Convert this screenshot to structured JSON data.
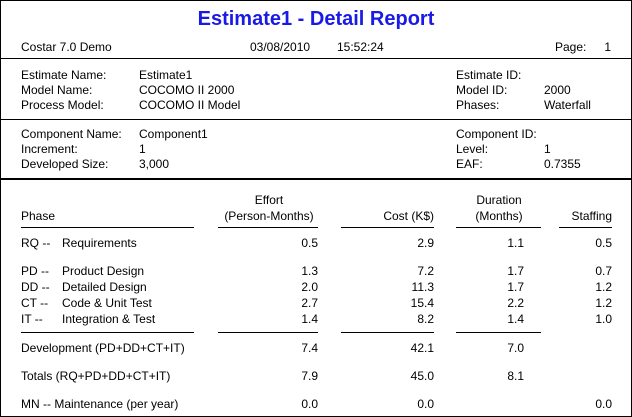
{
  "report": {
    "title": "Estimate1 - Detail Report",
    "app": "Costar 7.0 Demo",
    "date": "03/08/2010",
    "time": "15:52:24",
    "page_label": "Page:",
    "page_number": "1"
  },
  "estimate": {
    "name_label": "Estimate Name:",
    "name": "Estimate1",
    "model_label": "Model Name:",
    "model": "COCOMO II 2000",
    "process_label": "Process Model:",
    "process": "COCOMO II Model",
    "id_label": "Estimate ID:",
    "id": "",
    "model_id_label": "Model ID:",
    "model_id": "2000",
    "phases_label": "Phases:",
    "phases": "Waterfall"
  },
  "component": {
    "name_label": "Component Name:",
    "name": "Component1",
    "increment_label": "Increment:",
    "increment": "1",
    "size_label": "Developed Size:",
    "size": "3,000",
    "id_label": "Component ID:",
    "id": "",
    "level_label": "Level:",
    "level": "1",
    "eaf_label": "EAF:",
    "eaf": "0.7355"
  },
  "table": {
    "headers": {
      "phase": "Phase",
      "effort_1": "Effort",
      "effort_2": "(Person-Months)",
      "cost": "Cost (K$)",
      "duration_1": "Duration",
      "duration_2": "(Months)",
      "staffing": "Staffing"
    },
    "rows": [
      {
        "code": "RQ --",
        "name": "Requirements",
        "effort": "0.5",
        "cost": "2.9",
        "duration": "1.1",
        "staffing": "0.5"
      },
      {
        "code": "PD --",
        "name": "Product Design",
        "effort": "1.3",
        "cost": "7.2",
        "duration": "1.7",
        "staffing": "0.7"
      },
      {
        "code": "DD --",
        "name": "Detailed Design",
        "effort": "2.0",
        "cost": "11.3",
        "duration": "1.7",
        "staffing": "1.2"
      },
      {
        "code": "CT --",
        "name": "Code & Unit Test",
        "effort": "2.7",
        "cost": "15.4",
        "duration": "2.2",
        "staffing": "1.2"
      },
      {
        "code": "IT  --",
        "name": "Integration & Test",
        "effort": "1.4",
        "cost": "8.2",
        "duration": "1.4",
        "staffing": "1.0"
      }
    ],
    "development": {
      "label": "Development (PD+DD+CT+IT)",
      "effort": "7.4",
      "cost": "42.1",
      "duration": "7.0",
      "staffing": ""
    },
    "totals": {
      "label": "Totals (RQ+PD+DD+CT+IT)",
      "effort": "7.9",
      "cost": "45.0",
      "duration": "8.1",
      "staffing": ""
    },
    "maintenance": {
      "label": "MN --  Maintenance (per year)",
      "effort": "0.0",
      "cost": "0.0",
      "duration": "",
      "staffing": "0.0"
    }
  }
}
